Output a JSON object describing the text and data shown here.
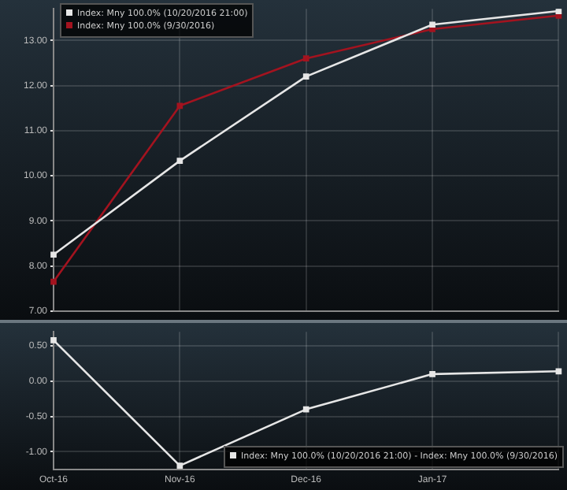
{
  "chart_data": [
    {
      "type": "line",
      "categories": [
        null,
        null,
        null,
        null,
        null
      ],
      "series": [
        {
          "name": "Index: Mny 100.0% (10/20/2016 21:00)",
          "color": "#e6e6e6",
          "values": [
            8.25,
            10.33,
            12.2,
            13.35,
            13.65
          ]
        },
        {
          "name": "Index: Mny 100.0% (9/30/2016)",
          "color": "#a3131f",
          "values": [
            7.65,
            11.55,
            12.6,
            13.25,
            13.55
          ]
        }
      ],
      "ylim": [
        7,
        13.7
      ],
      "yticks": [
        {
          "value": 7,
          "label": "7.00"
        },
        {
          "value": 8,
          "label": "8.00"
        },
        {
          "value": 9,
          "label": "9.00"
        },
        {
          "value": 10,
          "label": "10.00"
        },
        {
          "value": 11,
          "label": "11.00"
        },
        {
          "value": 12,
          "label": "12.00"
        },
        {
          "value": 13,
          "label": "13.00"
        }
      ],
      "grid": true,
      "legend": "top left",
      "marker": "square",
      "tick_labels": "y"
    },
    {
      "type": "line",
      "categories": [
        "Oct-16",
        "Nov-16",
        "Dec-16",
        "Jan-17",
        null
      ],
      "series": [
        {
          "name": "Index: Mny 100.0% (10/20/2016 21:00) - Index: Mny 100.0% (9/30/2016)",
          "color": "#e6e6e6",
          "values": [
            0.58,
            -1.2,
            -0.4,
            0.1,
            0.14
          ]
        }
      ],
      "ylim": [
        -1.25,
        0.7
      ],
      "yticks": [
        {
          "value": -1,
          "label": "-1.00"
        },
        {
          "value": -0.5,
          "label": "-0.50"
        },
        {
          "value": 0,
          "label": "0.00"
        },
        {
          "value": 0.5,
          "label": "0.50"
        }
      ],
      "grid": true,
      "legend": "bottom right",
      "marker": "square"
    }
  ]
}
